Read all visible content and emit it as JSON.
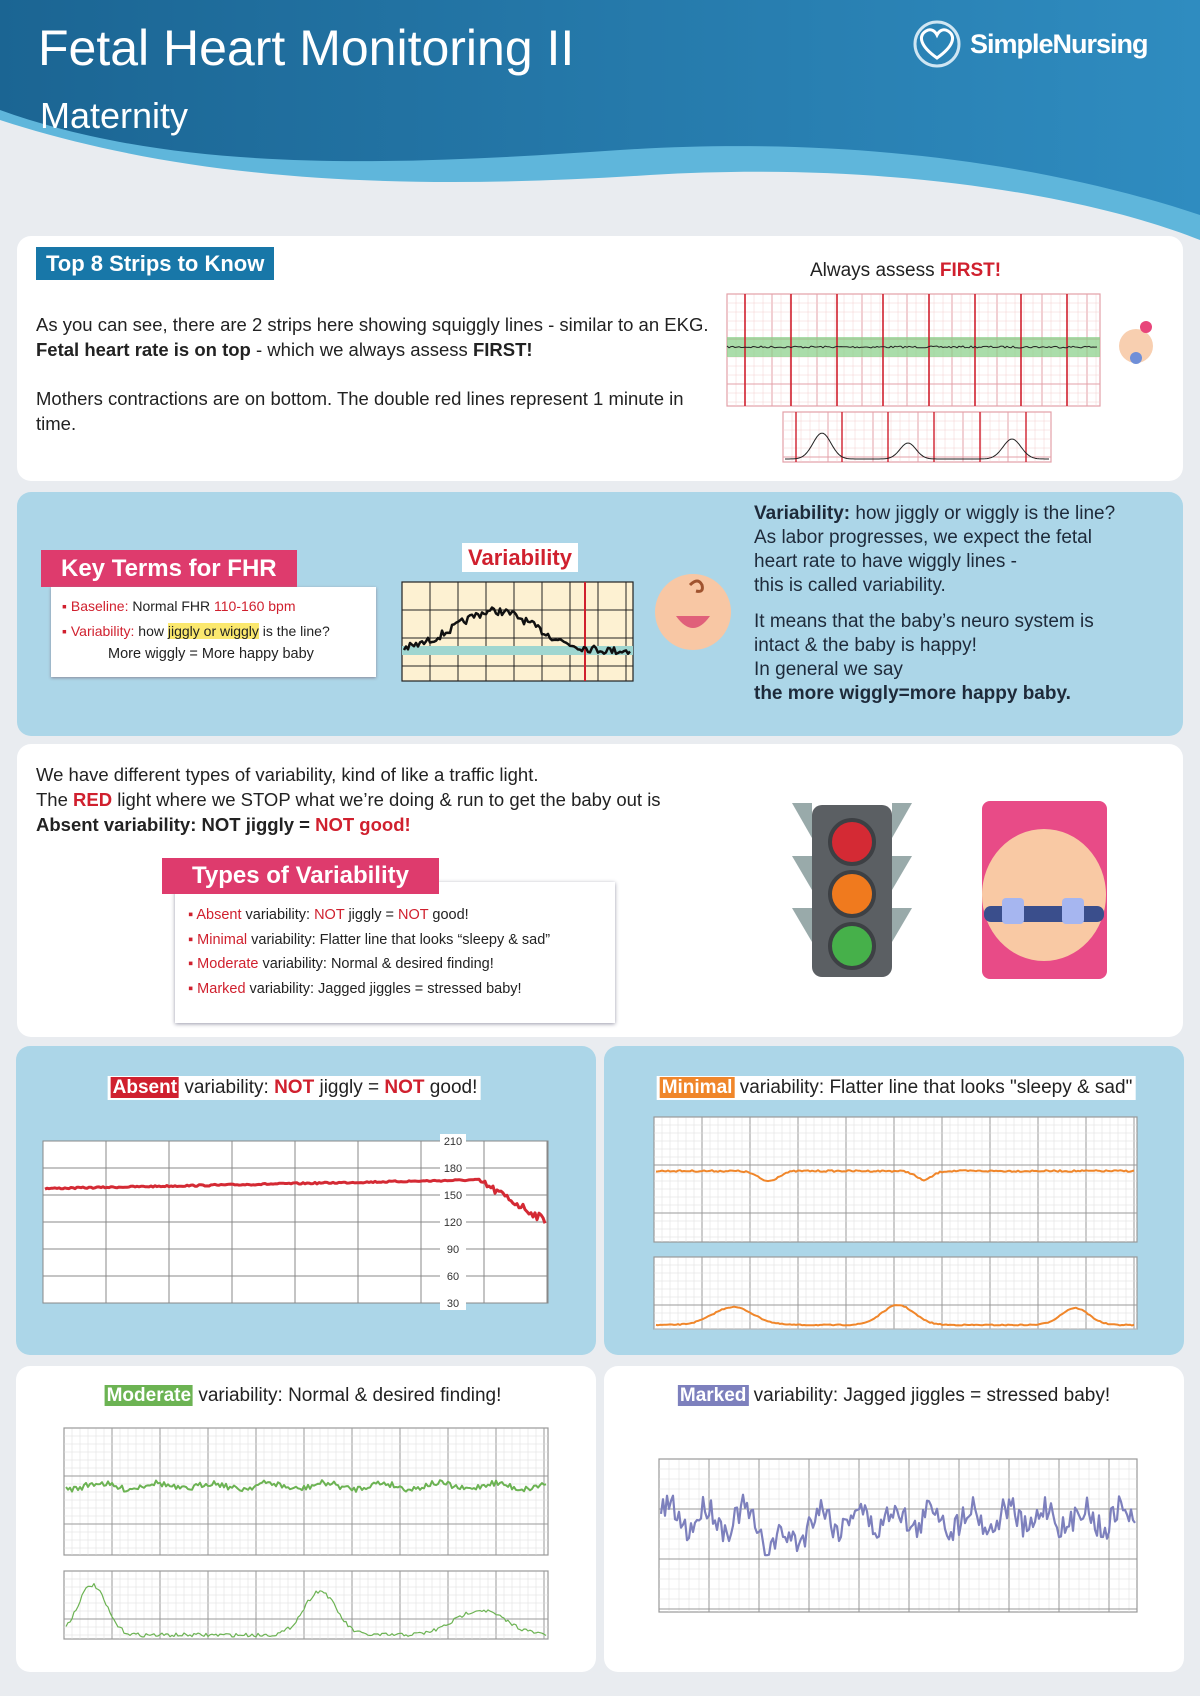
{
  "header": {
    "title": "Fetal Heart Monitoring II",
    "subtitle": "Maternity",
    "brand": "SimpleNursing"
  },
  "intro": {
    "badge": "Top 8 Strips to Know",
    "paragraph_1": [
      "As you can see, there are 2 strips here showing squiggly lines - similar to an EKG. ",
      "Fetal heart rate is on top",
      " - which we always assess ",
      "FIRST!"
    ],
    "paragraph_2": "Mothers contractions are on bottom. The double red lines represent 1 minute in time.",
    "strip_caption": [
      "Always assess ",
      "FIRST!"
    ]
  },
  "key_terms": {
    "title": "Key Terms for FHR",
    "baseline": [
      "Baseline:",
      " Normal FHR ",
      "110-160 bpm"
    ],
    "variability": [
      "Variability:",
      " how ",
      "jiggly or wiggly",
      " is the line?"
    ],
    "note": "More wiggly = More happy baby",
    "strip_label": "Variability",
    "explanation": {
      "term": "Variability:",
      "lines": [
        " how jiggly or wiggly is the line?",
        "As labor progresses, we expect the fetal",
        "heart rate to have wiggly lines -",
        "this is called variability."
      ],
      "paragraph_2": [
        "It means that the baby’s neuro system is",
        "intact & the baby is happy!",
        "In general we say"
      ],
      "conclusion": "the more wiggly=more happy baby."
    }
  },
  "types": {
    "line_1": "We have different types of variability, kind of like a traffic light.",
    "line_2": [
      "The ",
      "RED",
      " light where we STOP what we’re doing & run to get the baby out is"
    ],
    "line_3": [
      "Absent variability: NOT jiggly = ",
      "NOT good!"
    ],
    "title": "Types of Variability",
    "items": [
      [
        "Absent",
        " variability: ",
        "NOT",
        " jiggly = ",
        "NOT",
        " good!"
      ],
      [
        "Minimal",
        " variability: Flatter line that looks “sleepy & sad”"
      ],
      [
        "Moderate",
        " variability: Normal & desired finding!"
      ],
      [
        "Marked",
        " variability: Jagged jiggles = stressed baby!"
      ]
    ]
  },
  "strips": {
    "absent": {
      "heading": [
        "Absent",
        " variability: ",
        "NOT",
        " jiggly = ",
        "NOT",
        " good!"
      ],
      "yticks": [
        210,
        180,
        150,
        120,
        90,
        60,
        30
      ]
    },
    "minimal": {
      "heading": [
        "Minimal",
        " variability: Flatter line that looks \"sleepy & sad\""
      ]
    },
    "moderate": {
      "heading": [
        "Moderate",
        " variability: Normal & desired finding!"
      ]
    },
    "marked": {
      "heading": [
        "Marked",
        " variability: Jagged jiggles = stressed baby!"
      ]
    }
  }
}
